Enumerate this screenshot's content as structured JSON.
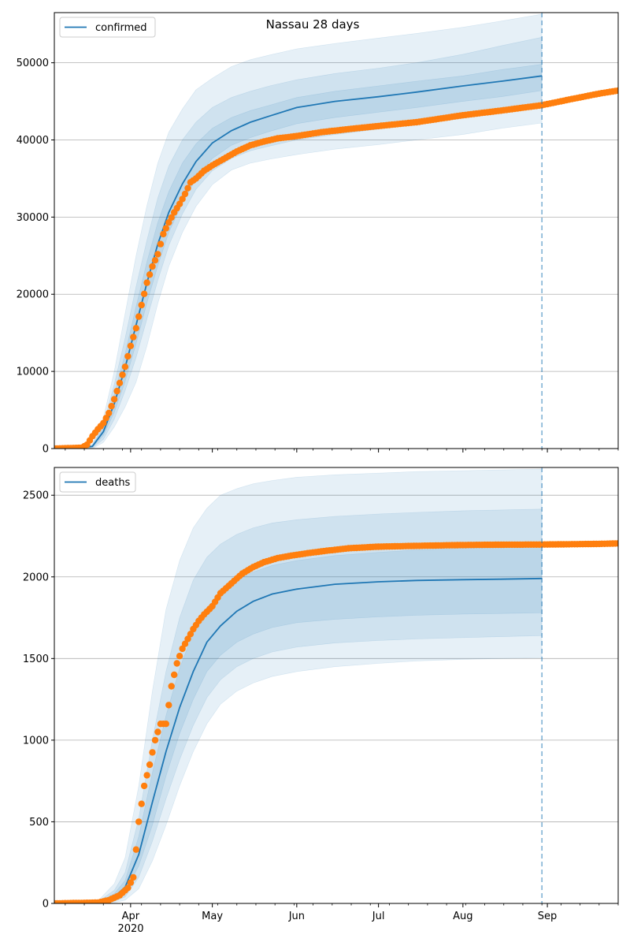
{
  "figure": {
    "title": "Nassau 28 days"
  },
  "colors": {
    "model": "#1f77b4",
    "observed": "#ff7f0e",
    "band": "#1f77b4",
    "grid": "#b0b0b0"
  },
  "x_axis": {
    "tick_labels": [
      "Apr",
      "May",
      "Jun",
      "Jul",
      "Aug",
      "Sep"
    ],
    "tick_dates": [
      "2020-04-01",
      "2020-05-01",
      "2020-06-01",
      "2020-07-01",
      "2020-08-01",
      "2020-09-01"
    ],
    "year_label": "2020",
    "range": [
      "2020-03-04",
      "2020-09-27"
    ],
    "forecast_start": "2020-08-30"
  },
  "chart_data": [
    {
      "type": "line",
      "legend": "confirmed",
      "legend_position": "upper-left",
      "grid": "horizontal",
      "ylim": [
        0,
        56500
      ],
      "yticks": [
        0,
        10000,
        20000,
        30000,
        40000,
        50000
      ],
      "yticklabels": [
        "0",
        "10000",
        "20000",
        "30000",
        "40000",
        "50000"
      ],
      "model_median": {
        "x": [
          "2020-03-04",
          "2020-03-12",
          "2020-03-18",
          "2020-03-22",
          "2020-03-26",
          "2020-03-30",
          "2020-04-03",
          "2020-04-07",
          "2020-04-11",
          "2020-04-15",
          "2020-04-20",
          "2020-04-25",
          "2020-05-01",
          "2020-05-08",
          "2020-05-15",
          "2020-05-22",
          "2020-06-01",
          "2020-06-15",
          "2020-07-01",
          "2020-07-15",
          "2020-08-01",
          "2020-08-15",
          "2020-08-30"
        ],
        "y": [
          0,
          0,
          300,
          2200,
          5800,
          10500,
          16000,
          21500,
          26500,
          30600,
          34300,
          37200,
          39600,
          41200,
          42300,
          43100,
          44200,
          45000,
          45600,
          46200,
          47000,
          47600,
          48300
        ]
      },
      "bands": [
        {
          "upper": [
            0,
            0,
            600,
            4000,
            10000,
            17500,
            25000,
            31500,
            37000,
            41000,
            44000,
            46500,
            48000,
            49500,
            50400,
            51000,
            51800,
            52500,
            53200,
            53800,
            54600,
            55400,
            56300
          ],
          "lower": [
            0,
            0,
            0,
            800,
            2800,
            5400,
            8600,
            13300,
            18800,
            23600,
            28000,
            31400,
            34200,
            36100,
            37000,
            37500,
            38100,
            38800,
            39400,
            40000,
            40700,
            41500,
            42200
          ]
        },
        {
          "upper": [
            0,
            0,
            450,
            3100,
            8300,
            14300,
            21000,
            27000,
            32500,
            36600,
            40000,
            42300,
            44200,
            45500,
            46300,
            47000,
            47800,
            48600,
            49300,
            50000,
            51100,
            52200,
            53300
          ],
          "lower": [
            0,
            0,
            100,
            1200,
            3800,
            7500,
            11800,
            16800,
            21800,
            26300,
            30400,
            33600,
            36000,
            37600,
            38600,
            39200,
            40000,
            40700,
            41400,
            42000,
            42800,
            43600,
            44400
          ]
        },
        {
          "upper": [
            0,
            0,
            380,
            2700,
            7000,
            12300,
            18400,
            24200,
            29300,
            33300,
            37000,
            39500,
            41500,
            42900,
            43800,
            44500,
            45500,
            46300,
            47000,
            47600,
            48300,
            49100,
            49800
          ],
          "lower": [
            0,
            0,
            200,
            1700,
            4700,
            8700,
            13600,
            18900,
            23700,
            28000,
            31800,
            35000,
            37600,
            39300,
            40300,
            41100,
            42100,
            42900,
            43600,
            44200,
            45000,
            45600,
            46400
          ]
        }
      ],
      "observed": {
        "x": [
          "2020-03-04",
          "2020-03-14",
          "2020-03-16",
          "2020-03-18",
          "2020-03-20",
          "2020-03-22",
          "2020-03-24",
          "2020-03-26",
          "2020-03-28",
          "2020-03-30",
          "2020-04-01",
          "2020-04-03",
          "2020-04-05",
          "2020-04-07",
          "2020-04-09",
          "2020-04-11",
          "2020-04-13",
          "2020-04-15",
          "2020-04-17",
          "2020-04-19",
          "2020-04-21",
          "2020-04-23",
          "2020-04-25",
          "2020-04-28",
          "2020-05-01",
          "2020-05-05",
          "2020-05-10",
          "2020-05-15",
          "2020-05-20",
          "2020-05-25",
          "2020-06-01",
          "2020-06-10",
          "2020-06-20",
          "2020-07-01",
          "2020-07-15",
          "2020-08-01",
          "2020-08-15",
          "2020-08-30",
          "2020-09-10",
          "2020-09-20",
          "2020-09-27"
        ],
        "y": [
          0,
          100,
          500,
          1600,
          2500,
          3300,
          4600,
          6400,
          8500,
          10600,
          13300,
          15600,
          18600,
          21500,
          23600,
          25200,
          27800,
          29300,
          30600,
          31700,
          33000,
          34500,
          35000,
          36000,
          36700,
          37500,
          38500,
          39300,
          39800,
          40200,
          40500,
          41000,
          41400,
          41800,
          42300,
          43200,
          43800,
          44500,
          45300,
          46000,
          46400
        ]
      }
    },
    {
      "type": "line",
      "legend": "deaths",
      "legend_position": "upper-left",
      "grid": "horizontal",
      "ylim": [
        0,
        2670
      ],
      "yticks": [
        0,
        500,
        1000,
        1500,
        2000,
        2500
      ],
      "yticklabels": [
        "0",
        "500",
        "1000",
        "1500",
        "2000",
        "2500"
      ],
      "model_median": {
        "x": [
          "2020-03-04",
          "2020-03-20",
          "2020-03-26",
          "2020-03-30",
          "2020-04-04",
          "2020-04-09",
          "2020-04-14",
          "2020-04-19",
          "2020-04-24",
          "2020-04-29",
          "2020-05-04",
          "2020-05-10",
          "2020-05-16",
          "2020-05-23",
          "2020-06-01",
          "2020-06-15",
          "2020-07-01",
          "2020-07-15",
          "2020-08-01",
          "2020-08-15",
          "2020-08-30"
        ],
        "y": [
          0,
          5,
          40,
          100,
          300,
          620,
          930,
          1200,
          1420,
          1600,
          1700,
          1790,
          1850,
          1895,
          1925,
          1955,
          1970,
          1978,
          1983,
          1986,
          1990
        ]
      },
      "bands": [
        {
          "upper": [
            0,
            15,
            120,
            280,
            720,
            1300,
            1800,
            2100,
            2300,
            2420,
            2500,
            2540,
            2570,
            2590,
            2610,
            2625,
            2635,
            2645,
            2650,
            2655,
            2660
          ],
          "lower": [
            0,
            0,
            5,
            20,
            90,
            260,
            480,
            720,
            930,
            1100,
            1220,
            1300,
            1350,
            1390,
            1420,
            1450,
            1470,
            1485,
            1495,
            1500,
            1505
          ]
        },
        {
          "upper": [
            0,
            10,
            80,
            190,
            520,
            1000,
            1420,
            1750,
            1980,
            2120,
            2200,
            2260,
            2300,
            2330,
            2350,
            2370,
            2385,
            2395,
            2405,
            2410,
            2415
          ],
          "lower": [
            0,
            0,
            12,
            40,
            160,
            380,
            640,
            880,
            1090,
            1260,
            1370,
            1450,
            1500,
            1540,
            1570,
            1595,
            1610,
            1620,
            1628,
            1634,
            1640
          ]
        },
        {
          "upper": [
            0,
            7,
            60,
            140,
            410,
            800,
            1150,
            1440,
            1660,
            1810,
            1900,
            1980,
            2030,
            2070,
            2100,
            2130,
            2150,
            2165,
            2175,
            2180,
            2185
          ],
          "lower": [
            0,
            2,
            25,
            70,
            230,
            480,
            780,
            1040,
            1250,
            1420,
            1520,
            1600,
            1650,
            1690,
            1720,
            1740,
            1755,
            1765,
            1772,
            1776,
            1780
          ]
        }
      ],
      "observed": {
        "x": [
          "2020-03-04",
          "2020-03-20",
          "2020-03-24",
          "2020-03-28",
          "2020-03-31",
          "2020-04-02",
          "2020-04-04",
          "2020-04-06",
          "2020-04-08",
          "2020-04-10",
          "2020-04-12",
          "2020-04-14",
          "2020-04-16",
          "2020-04-18",
          "2020-04-20",
          "2020-04-22",
          "2020-04-24",
          "2020-04-26",
          "2020-04-28",
          "2020-05-01",
          "2020-05-04",
          "2020-05-06",
          "2020-05-08",
          "2020-05-12",
          "2020-05-16",
          "2020-05-20",
          "2020-05-25",
          "2020-05-30",
          "2020-06-05",
          "2020-06-12",
          "2020-06-20",
          "2020-07-01",
          "2020-07-15",
          "2020-08-01",
          "2020-08-15",
          "2020-08-30",
          "2020-09-10",
          "2020-09-20",
          "2020-09-27"
        ],
        "y": [
          0,
          5,
          20,
          50,
          95,
          160,
          500,
          720,
          850,
          1000,
          1100,
          1100,
          1330,
          1470,
          1560,
          1620,
          1680,
          1730,
          1770,
          1820,
          1900,
          1930,
          1960,
          2020,
          2060,
          2090,
          2115,
          2130,
          2145,
          2160,
          2175,
          2185,
          2190,
          2195,
          2197,
          2198,
          2200,
          2202,
          2205
        ]
      }
    }
  ]
}
